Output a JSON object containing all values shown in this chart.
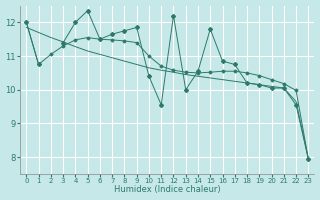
{
  "xlabel": "Humidex (Indice chaleur)",
  "xlim": [
    -0.5,
    23.5
  ],
  "ylim": [
    7.5,
    12.5
  ],
  "xticks": [
    0,
    1,
    2,
    3,
    4,
    5,
    6,
    7,
    8,
    9,
    10,
    11,
    12,
    13,
    14,
    15,
    16,
    17,
    18,
    19,
    20,
    21,
    22,
    23
  ],
  "yticks": [
    8,
    9,
    10,
    11,
    12
  ],
  "bg_color": "#c6e8e8",
  "line_color": "#2d7a6a",
  "grid_color": "#ffffff",
  "line1_y": [
    12.0,
    10.75,
    null,
    11.4,
    12.0,
    12.35,
    11.5,
    11.65,
    11.75,
    11.85,
    10.4,
    9.55,
    12.2,
    10.0,
    10.55,
    11.8,
    10.85,
    10.75,
    10.2,
    10.15,
    10.05,
    10.05,
    9.55,
    7.95
  ],
  "line2_y": [
    12.0,
    10.75,
    11.05,
    11.3,
    11.48,
    11.55,
    11.5,
    11.48,
    11.45,
    11.4,
    11.0,
    10.7,
    10.58,
    10.52,
    10.5,
    10.52,
    10.55,
    10.55,
    10.5,
    10.42,
    10.3,
    10.18,
    9.98,
    7.95
  ],
  "line3_y": [
    11.85,
    11.7,
    11.55,
    11.42,
    11.28,
    11.15,
    11.05,
    10.95,
    10.85,
    10.75,
    10.65,
    10.58,
    10.52,
    10.45,
    10.4,
    10.35,
    10.3,
    10.25,
    10.2,
    10.15,
    10.1,
    10.05,
    9.65,
    7.95
  ]
}
